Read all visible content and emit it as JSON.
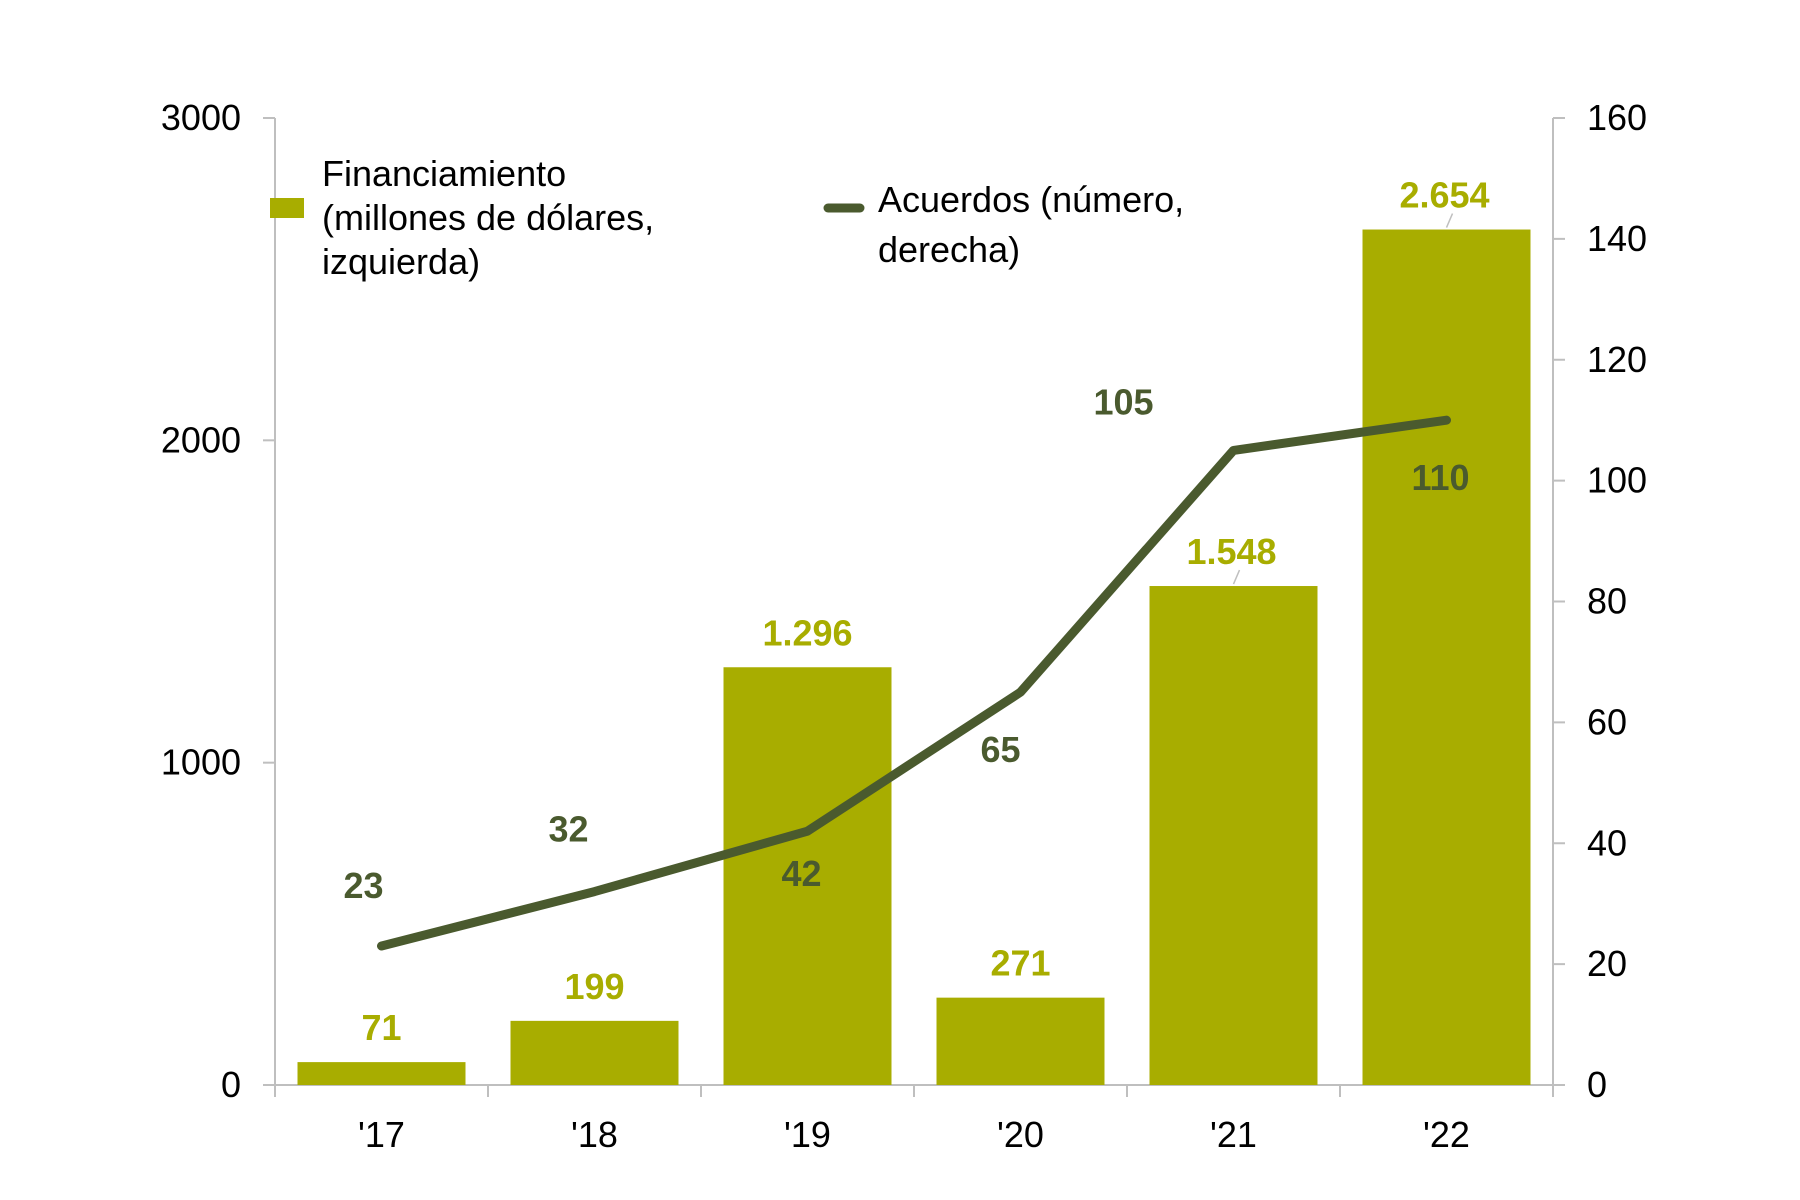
{
  "chart_data": {
    "type": "bar",
    "categories": [
      "'17",
      "'18",
      "'19",
      "'20",
      "'21",
      "'22"
    ],
    "series": [
      {
        "name": "Financiamiento (millones de dólares, izquierda)",
        "legend_lines": [
          "Financiamiento",
          "(millones de dólares,",
          "izquierda)"
        ],
        "kind": "bar",
        "axis": "left",
        "values": [
          71,
          199,
          1296,
          271,
          1548,
          2654
        ],
        "labels": [
          "71",
          "199",
          "1.296",
          "271",
          "1.548",
          "2.654"
        ],
        "color": "#a8ad00"
      },
      {
        "name": "Acuerdos (número, derecha)",
        "legend_lines": [
          "Acuerdos (número,",
          "derecha)"
        ],
        "kind": "line",
        "axis": "right",
        "values": [
          23,
          32,
          42,
          65,
          105,
          110
        ],
        "labels": [
          "23",
          "32",
          "42",
          "65",
          "105",
          "110"
        ],
        "color": "#4a5a2e"
      }
    ],
    "y_left": {
      "min": 0,
      "max": 3000,
      "ticks": [
        0,
        1000,
        2000,
        3000
      ],
      "tick_labels": [
        "0",
        "1000",
        "2000",
        "3000"
      ]
    },
    "y_right": {
      "min": 0,
      "max": 160,
      "ticks": [
        0,
        20,
        40,
        60,
        80,
        100,
        120,
        140,
        160
      ],
      "tick_labels": [
        "0",
        "20",
        "40",
        "60",
        "80",
        "100",
        "120",
        "140",
        "160"
      ]
    },
    "grid": false,
    "legend_position": "top-left"
  }
}
